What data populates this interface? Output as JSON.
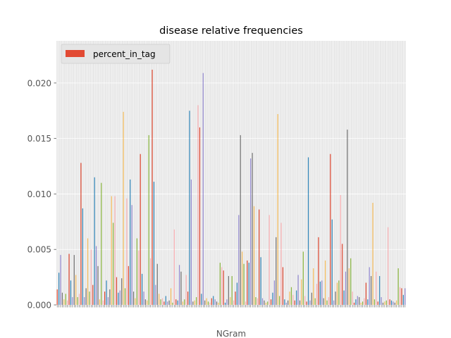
{
  "chart_data": {
    "type": "bar",
    "title": "disease relative frequencies",
    "xlabel": "NGram",
    "ylabel": "",
    "ylim": [
      0,
      0.0238
    ],
    "yticks": [
      0.0,
      0.005,
      0.01,
      0.015,
      0.02
    ],
    "ytick_labels": [
      "0.000",
      "0.005",
      "0.010",
      "0.015",
      "0.020"
    ],
    "grid": true,
    "legend": {
      "position": "top-left",
      "entries": [
        "percent_in_tag"
      ]
    },
    "series": [
      {
        "name": "percent_in_tag",
        "color_cycle": [
          "#E24A33",
          "#348ABD",
          "#988ED5",
          "#777777",
          "#FBC15E",
          "#8EBA42",
          "#FFB5B8"
        ],
        "values": [
          0.0014,
          0.0029,
          0.0045,
          0.0011,
          0.0005,
          0.001,
          0.0004,
          0.0046,
          0.0022,
          0.0007,
          0.0045,
          0.0027,
          0.0007,
          0.001,
          0.0128,
          0.0087,
          0.0007,
          0.0015,
          0.006,
          0.0012,
          0.005,
          0.0018,
          0.0115,
          0.0053,
          0.0035,
          0.0005,
          0.011,
          0.0004,
          0.0012,
          0.0022,
          0.0007,
          0.0014,
          0.0098,
          0.0074,
          0.0098,
          0.0025,
          0.0011,
          0.0013,
          0.0024,
          0.0174,
          0.0015,
          0.0096,
          0.0035,
          0.0113,
          0.009,
          0.0012,
          0.0006,
          0.006,
          0.0049,
          0.0136,
          0.0028,
          0.0012,
          0.0005,
          0.0004,
          0.0153,
          0.0042,
          0.0212,
          0.0111,
          0.0018,
          0.0037,
          0.001,
          0.0005,
          0.0006,
          0.0003,
          0.0008,
          0.0003,
          0.0004,
          0.0015,
          0.0002,
          0.0068,
          0.0005,
          0.0004,
          0.0036,
          0.003,
          0.0003,
          0.0005,
          0.0027,
          0.0012,
          0.0175,
          0.0113,
          0.0003,
          0.0004,
          0.0007,
          0.018,
          0.016,
          0.001,
          0.0209,
          0.0004,
          0.0006,
          0.0003,
          0.0002,
          0.0006,
          0.0008,
          0.0005,
          0.0003,
          0.0002,
          0.0038,
          0.0034,
          0.0031,
          0.0002,
          0.0005,
          0.0026,
          0.0007,
          0.0026,
          0.0004,
          0.0012,
          0.002,
          0.0081,
          0.0153,
          0.0048,
          0.0037,
          0.0003,
          0.004,
          0.0038,
          0.0132,
          0.0137,
          0.0089,
          0.0007,
          0.0006,
          0.0086,
          0.0043,
          0.0006,
          0.0004,
          0.0002,
          0.0003,
          0.0081,
          0.0005,
          0.0011,
          0.0022,
          0.0061,
          0.0172,
          0.0008,
          0.0074,
          0.0034,
          0.0005,
          0.0002,
          0.0004,
          0.0012,
          0.0016,
          0.0009,
          0.0004,
          0.0013,
          0.0027,
          0.0004,
          0.0023,
          0.0048,
          0.0008,
          0.0003,
          0.0133,
          0.0004,
          0.0011,
          0.0033,
          0.0006,
          0.0019,
          0.0061,
          0.0021,
          0.0022,
          0.0006,
          0.004,
          0.0004,
          0.0007,
          0.0136,
          0.0077,
          0.0004,
          0.0012,
          0.002,
          0.0022,
          0.0099,
          0.0055,
          0.0013,
          0.003,
          0.0158,
          0.0033,
          0.0042,
          0.0012,
          0.0002,
          0.0005,
          0.0008,
          0.0007,
          0.0002,
          0.0003,
          0.0006,
          0.002,
          0.0005,
          0.0034,
          0.0026,
          0.0092,
          0.0005,
          0.003,
          0.0003,
          0.0026,
          0.0007,
          0.0002,
          0.0003,
          0.0004,
          0.007,
          0.0005,
          0.0004,
          0.0003,
          0.0002,
          0.0004,
          0.0033,
          0.0016,
          0.0015,
          0.0009,
          0.0015
        ]
      }
    ]
  }
}
